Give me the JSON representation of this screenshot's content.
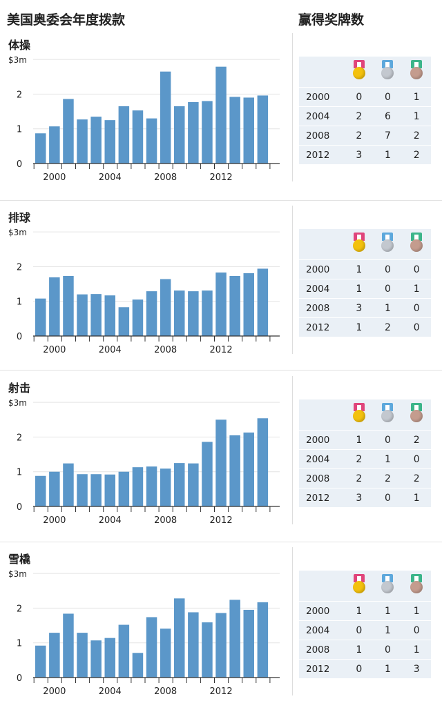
{
  "page": {
    "title_left": "美国奥委会年度拨款",
    "title_right": "赢得奖牌数",
    "colors": {
      "bar": "#5b97c9",
      "grid": "#e4e4e4",
      "table_bg": "#eaf0f6",
      "gold": "#f3c10e",
      "silver": "#c3c8cf",
      "bronze": "#c49c8e",
      "ribbon_gold": "#e0457b",
      "ribbon_silver": "#5da8dc",
      "ribbon_bronze": "#3cb58a"
    },
    "medal_icons": [
      "gold-medal-icon",
      "silver-medal-icon",
      "bronze-medal-icon"
    ]
  },
  "panels": [
    {
      "name": "体操",
      "chart_data": {
        "type": "bar",
        "categories": [
          "1999",
          "2000",
          "2001",
          "2002",
          "2003",
          "2004",
          "2005",
          "2006",
          "2007",
          "2008",
          "2009",
          "2010",
          "2011",
          "2012",
          "2013",
          "2014",
          "2015"
        ],
        "values": [
          0.87,
          1.07,
          1.86,
          1.27,
          1.35,
          1.25,
          1.65,
          1.53,
          1.3,
          2.65,
          1.65,
          1.77,
          1.8,
          2.79,
          1.92,
          1.9,
          1.96
        ],
        "unit": "$3m",
        "ylim": [
          0,
          3
        ],
        "y_ticks": [
          "0",
          "1",
          "2",
          "$3m"
        ],
        "x_labels": [
          "2000",
          "2004",
          "2008",
          "2012"
        ],
        "grid": true
      },
      "medals": {
        "columns": [
          "gold",
          "silver",
          "bronze"
        ],
        "rows": [
          {
            "year": "2000",
            "values": [
              "0",
              "0",
              "1"
            ]
          },
          {
            "year": "2004",
            "values": [
              "2",
              "6",
              "1"
            ]
          },
          {
            "year": "2008",
            "values": [
              "2",
              "7",
              "2"
            ]
          },
          {
            "year": "2012",
            "values": [
              "3",
              "1",
              "2"
            ]
          }
        ]
      }
    },
    {
      "name": "排球",
      "chart_data": {
        "type": "bar",
        "categories": [
          "1999",
          "2000",
          "2001",
          "2002",
          "2003",
          "2004",
          "2005",
          "2006",
          "2007",
          "2008",
          "2009",
          "2010",
          "2011",
          "2012",
          "2013",
          "2014",
          "2015"
        ],
        "values": [
          1.08,
          1.69,
          1.73,
          1.2,
          1.21,
          1.17,
          0.83,
          1.05,
          1.29,
          1.64,
          1.31,
          1.29,
          1.31,
          1.83,
          1.73,
          1.81,
          1.94
        ],
        "unit": "$3m",
        "ylim": [
          0,
          3
        ],
        "y_ticks": [
          "0",
          "1",
          "2",
          "$3m"
        ],
        "x_labels": [
          "2000",
          "2004",
          "2008",
          "2012"
        ],
        "grid": true
      },
      "medals": {
        "columns": [
          "gold",
          "silver",
          "bronze"
        ],
        "rows": [
          {
            "year": "2000",
            "values": [
              "1",
              "0",
              "0"
            ]
          },
          {
            "year": "2004",
            "values": [
              "1",
              "0",
              "1"
            ]
          },
          {
            "year": "2008",
            "values": [
              "3",
              "1",
              "0"
            ]
          },
          {
            "year": "2012",
            "values": [
              "1",
              "2",
              "0"
            ]
          }
        ]
      }
    },
    {
      "name": "射击",
      "chart_data": {
        "type": "bar",
        "categories": [
          "1999",
          "2000",
          "2001",
          "2002",
          "2003",
          "2004",
          "2005",
          "2006",
          "2007",
          "2008",
          "2009",
          "2010",
          "2011",
          "2012",
          "2013",
          "2014",
          "2015"
        ],
        "values": [
          0.88,
          1.0,
          1.24,
          0.93,
          0.93,
          0.92,
          1.0,
          1.13,
          1.15,
          1.09,
          1.25,
          1.24,
          1.86,
          2.5,
          2.05,
          2.13,
          2.54
        ],
        "unit": "$3m",
        "ylim": [
          0,
          3
        ],
        "y_ticks": [
          "0",
          "1",
          "2",
          "$3m"
        ],
        "x_labels": [
          "2000",
          "2004",
          "2008",
          "2012"
        ],
        "grid": true
      },
      "medals": {
        "columns": [
          "gold",
          "silver",
          "bronze"
        ],
        "rows": [
          {
            "year": "2000",
            "values": [
              "1",
              "0",
              "2"
            ]
          },
          {
            "year": "2004",
            "values": [
              "2",
              "1",
              "0"
            ]
          },
          {
            "year": "2008",
            "values": [
              "2",
              "2",
              "2"
            ]
          },
          {
            "year": "2012",
            "values": [
              "3",
              "0",
              "1"
            ]
          }
        ]
      }
    },
    {
      "name": "雪橇",
      "chart_data": {
        "type": "bar",
        "categories": [
          "1999",
          "2000",
          "2001",
          "2002",
          "2003",
          "2004",
          "2005",
          "2006",
          "2007",
          "2008",
          "2009",
          "2010",
          "2011",
          "2012",
          "2013",
          "2014",
          "2015"
        ],
        "values": [
          0.92,
          1.29,
          1.84,
          1.29,
          1.07,
          1.14,
          1.52,
          0.71,
          1.74,
          1.41,
          2.28,
          1.88,
          1.59,
          1.86,
          2.24,
          1.95,
          2.17
        ],
        "unit": "$3m",
        "ylim": [
          0,
          3
        ],
        "y_ticks": [
          "0",
          "1",
          "2",
          "$3m"
        ],
        "x_labels": [
          "2000",
          "2004",
          "2008",
          "2012"
        ],
        "grid": true
      },
      "medals": {
        "columns": [
          "gold",
          "silver",
          "bronze"
        ],
        "rows": [
          {
            "year": "2000",
            "values": [
              "1",
              "1",
              "1"
            ]
          },
          {
            "year": "2004",
            "values": [
              "0",
              "1",
              "0"
            ]
          },
          {
            "year": "2008",
            "values": [
              "1",
              "0",
              "1"
            ]
          },
          {
            "year": "2012",
            "values": [
              "0",
              "1",
              "3"
            ]
          }
        ]
      }
    }
  ]
}
